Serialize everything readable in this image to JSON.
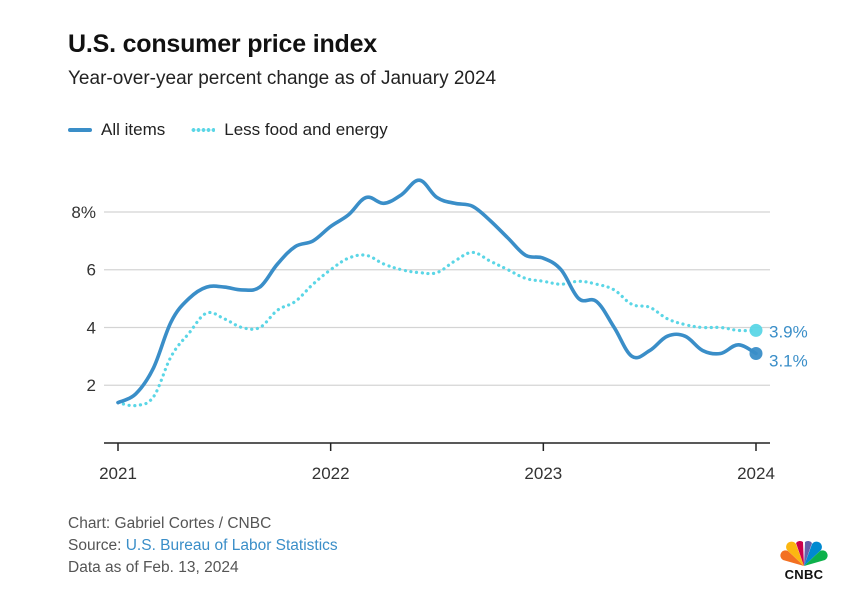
{
  "header": {
    "title": "U.S. consumer price index",
    "subtitle": "Year-over-year percent change as of January 2024"
  },
  "legend": {
    "all_items": "All items",
    "core": "Less food and energy"
  },
  "colors": {
    "all_items": "#3a8ec8",
    "core": "#5bd6e6",
    "grid": "#d4d4d4",
    "axis": "#222222"
  },
  "chart_data": {
    "type": "line",
    "x_unit": "year",
    "xlim": [
      2021,
      2024
    ],
    "ylim": [
      0,
      9.8
    ],
    "y_ticks": [
      2,
      4,
      6,
      8
    ],
    "y_tick_labels": [
      "2",
      "4",
      "6",
      "8%"
    ],
    "x_ticks": [
      2021,
      2022,
      2023,
      2024
    ],
    "x_tick_labels": [
      "2021",
      "2022",
      "2023",
      "2024"
    ],
    "series": [
      {
        "name": "All items",
        "style": "solid",
        "x": [
          2021.0,
          2021.0833,
          2021.1667,
          2021.25,
          2021.3333,
          2021.4167,
          2021.5,
          2021.5833,
          2021.6667,
          2021.75,
          2021.8333,
          2021.9167,
          2022.0,
          2022.0833,
          2022.1667,
          2022.25,
          2022.3333,
          2022.4167,
          2022.5,
          2022.5833,
          2022.6667,
          2022.75,
          2022.8333,
          2022.9167,
          2023.0,
          2023.0833,
          2023.1667,
          2023.25,
          2023.3333,
          2023.4167,
          2023.5,
          2023.5833,
          2023.6667,
          2023.75,
          2023.8333,
          2023.9167,
          2024.0
        ],
        "values": [
          1.4,
          1.7,
          2.6,
          4.2,
          5.0,
          5.4,
          5.4,
          5.3,
          5.4,
          6.2,
          6.8,
          7.0,
          7.5,
          7.9,
          8.5,
          8.3,
          8.6,
          9.1,
          8.5,
          8.3,
          8.2,
          7.7,
          7.1,
          6.5,
          6.4,
          6.0,
          5.0,
          4.9,
          4.0,
          3.0,
          3.2,
          3.7,
          3.7,
          3.2,
          3.1,
          3.4,
          3.1
        ]
      },
      {
        "name": "Less food and energy",
        "style": "dotted",
        "x": [
          2021.0,
          2021.0833,
          2021.1667,
          2021.25,
          2021.3333,
          2021.4167,
          2021.5,
          2021.5833,
          2021.6667,
          2021.75,
          2021.8333,
          2021.9167,
          2022.0,
          2022.0833,
          2022.1667,
          2022.25,
          2022.3333,
          2022.4167,
          2022.5,
          2022.5833,
          2022.6667,
          2022.75,
          2022.8333,
          2022.9167,
          2023.0,
          2023.0833,
          2023.1667,
          2023.25,
          2023.3333,
          2023.4167,
          2023.5,
          2023.5833,
          2023.6667,
          2023.75,
          2023.8333,
          2023.9167,
          2024.0
        ],
        "values": [
          1.4,
          1.3,
          1.6,
          3.0,
          3.8,
          4.5,
          4.3,
          4.0,
          4.0,
          4.6,
          4.9,
          5.5,
          6.0,
          6.4,
          6.5,
          6.2,
          6.0,
          5.9,
          5.9,
          6.3,
          6.6,
          6.3,
          6.0,
          5.7,
          5.6,
          5.5,
          5.6,
          5.5,
          5.3,
          4.8,
          4.7,
          4.3,
          4.1,
          4.0,
          4.0,
          3.9,
          3.9
        ]
      }
    ],
    "end_labels": [
      "3.1%",
      "3.9%"
    ]
  },
  "footer": {
    "credit": "Chart: Gabriel Cortes / CNBC",
    "source_label": "Source:",
    "source_link": "U.S. Bureau of Labor Statistics",
    "date_note": "Data as of Feb. 13, 2024"
  },
  "logo": {
    "text": "CNBC"
  }
}
